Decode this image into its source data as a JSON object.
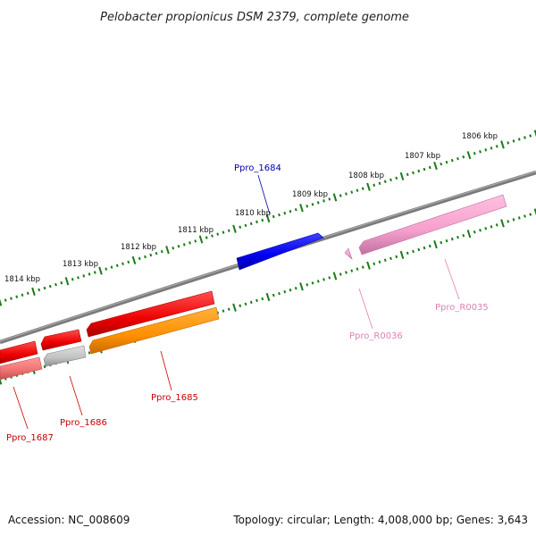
{
  "title": "Pelobacter propionicus DSM 2379, complete genome",
  "footer": {
    "accession": "Accession: NC_008609",
    "topology": "Topology: circular; Length: 4,008,000 bp; Genes: 3,643"
  },
  "colors": {
    "backbone": "#808080",
    "tick": "#1a7a1a",
    "label_red": "#cc0000",
    "label_blue": "#0000aa",
    "label_pink": "#e080b0"
  },
  "kbp_labels": [
    "1806 kbp",
    "1807 kbp",
    "1808 kbp",
    "1809 kbp",
    "1810 kbp",
    "1811 kbp",
    "1812 kbp",
    "1813 kbp",
    "1814 kbp"
  ],
  "genes": [
    {
      "label": "Ppro_1684",
      "color": "blue",
      "strand": "+"
    },
    {
      "label": "Ppro_1685",
      "color": "red",
      "strand": "-"
    },
    {
      "label": "Ppro_1686",
      "color": "red",
      "strand": "-"
    },
    {
      "label": "Ppro_1687",
      "color": "red",
      "strand": "-"
    },
    {
      "label": "Ppro_R0035",
      "color": "pink",
      "strand": "-"
    },
    {
      "label": "Ppro_R0036",
      "color": "pink",
      "strand": "-"
    }
  ]
}
